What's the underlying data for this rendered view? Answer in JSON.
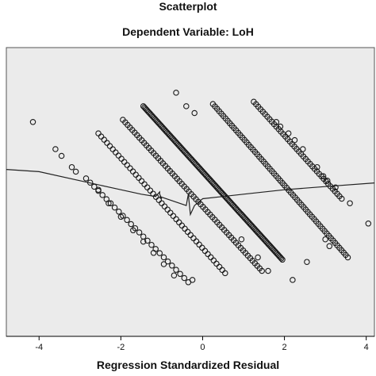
{
  "chart_data": {
    "type": "scatter",
    "title": "Scatterplot",
    "subtitle": "Dependent Variable: LoH",
    "xlabel": "Regression Standardized Residual",
    "ylabel": "",
    "xlim": [
      -4.8,
      4.2
    ],
    "ylim": [
      -3.2,
      3.2
    ],
    "xticks": [
      -4,
      -2,
      0,
      2,
      4
    ],
    "grid": false,
    "colors": {
      "plot_bg": "#ebebeb",
      "marker": "#1a1a1a",
      "line": "#222222",
      "frame": "#555555"
    },
    "series": [
      {
        "points": [
          [
            -4.15,
            1.55
          ],
          [
            -3.6,
            0.95
          ],
          [
            -3.45,
            0.8
          ],
          [
            -3.2,
            0.55
          ],
          [
            -3.1,
            0.45
          ],
          [
            -0.65,
            2.2
          ],
          [
            -0.4,
            1.9
          ],
          [
            -0.2,
            1.75
          ],
          [
            1.8,
            1.55
          ],
          [
            1.9,
            1.45
          ],
          [
            2.1,
            1.3
          ],
          [
            2.25,
            1.15
          ],
          [
            2.45,
            0.95
          ],
          [
            2.8,
            0.55
          ],
          [
            2.95,
            0.35
          ],
          [
            3.05,
            0.25
          ],
          [
            3.25,
            0.1
          ],
          [
            3.6,
            -0.25
          ],
          [
            4.05,
            -0.7
          ],
          [
            0.95,
            -1.05
          ],
          [
            1.35,
            -1.45
          ],
          [
            1.6,
            -1.75
          ],
          [
            2.2,
            -1.95
          ],
          [
            2.55,
            -1.55
          ],
          [
            3.0,
            -1.05
          ],
          [
            3.1,
            -1.2
          ],
          [
            -0.25,
            -1.95
          ],
          [
            -2.55,
            0.05
          ],
          [
            -2.3,
            -0.25
          ],
          [
            -2.0,
            -0.55
          ],
          [
            -1.7,
            -0.85
          ],
          [
            -1.45,
            -1.1
          ],
          [
            -1.2,
            -1.35
          ],
          [
            -0.95,
            -1.6
          ],
          [
            -0.7,
            -1.85
          ]
        ],
        "bands": [
          {
            "from": [
              -2.85,
              0.3
            ],
            "to": [
              -0.35,
              -2.0
            ],
            "count": 26
          },
          {
            "from": [
              -2.55,
              1.3
            ],
            "to": [
              0.55,
              -1.8
            ],
            "count": 45
          },
          {
            "from": [
              -1.95,
              1.6
            ],
            "to": [
              1.45,
              -1.75
            ],
            "count": 60
          },
          {
            "from": [
              -1.45,
              1.9
            ],
            "to": [
              1.95,
              -1.5
            ],
            "count": 130
          },
          {
            "from": [
              0.25,
              1.95
            ],
            "to": [
              3.55,
              -1.45
            ],
            "count": 65
          },
          {
            "from": [
              1.25,
              2.0
            ],
            "to": [
              3.4,
              -0.15
            ],
            "count": 40
          }
        ]
      }
    ],
    "fit_line": [
      [
        -4.8,
        0.5
      ],
      [
        -4.0,
        0.45
      ],
      [
        -3.0,
        0.25
      ],
      [
        -2.0,
        0.05
      ],
      [
        -1.5,
        -0.05
      ],
      [
        -1.15,
        -0.1
      ],
      [
        -1.05,
        0.0
      ],
      [
        -1.05,
        -0.05
      ],
      [
        -1.0,
        -0.15
      ],
      [
        -1.05,
        -0.1
      ],
      [
        -0.4,
        -0.3
      ],
      [
        -0.35,
        -0.05
      ],
      [
        -0.3,
        -0.5
      ],
      [
        -0.2,
        -0.3
      ],
      [
        0.0,
        -0.15
      ],
      [
        0.5,
        -0.1
      ],
      [
        1.0,
        -0.05
      ],
      [
        2.0,
        0.05
      ],
      [
        3.0,
        0.12
      ],
      [
        4.2,
        0.2
      ]
    ]
  }
}
